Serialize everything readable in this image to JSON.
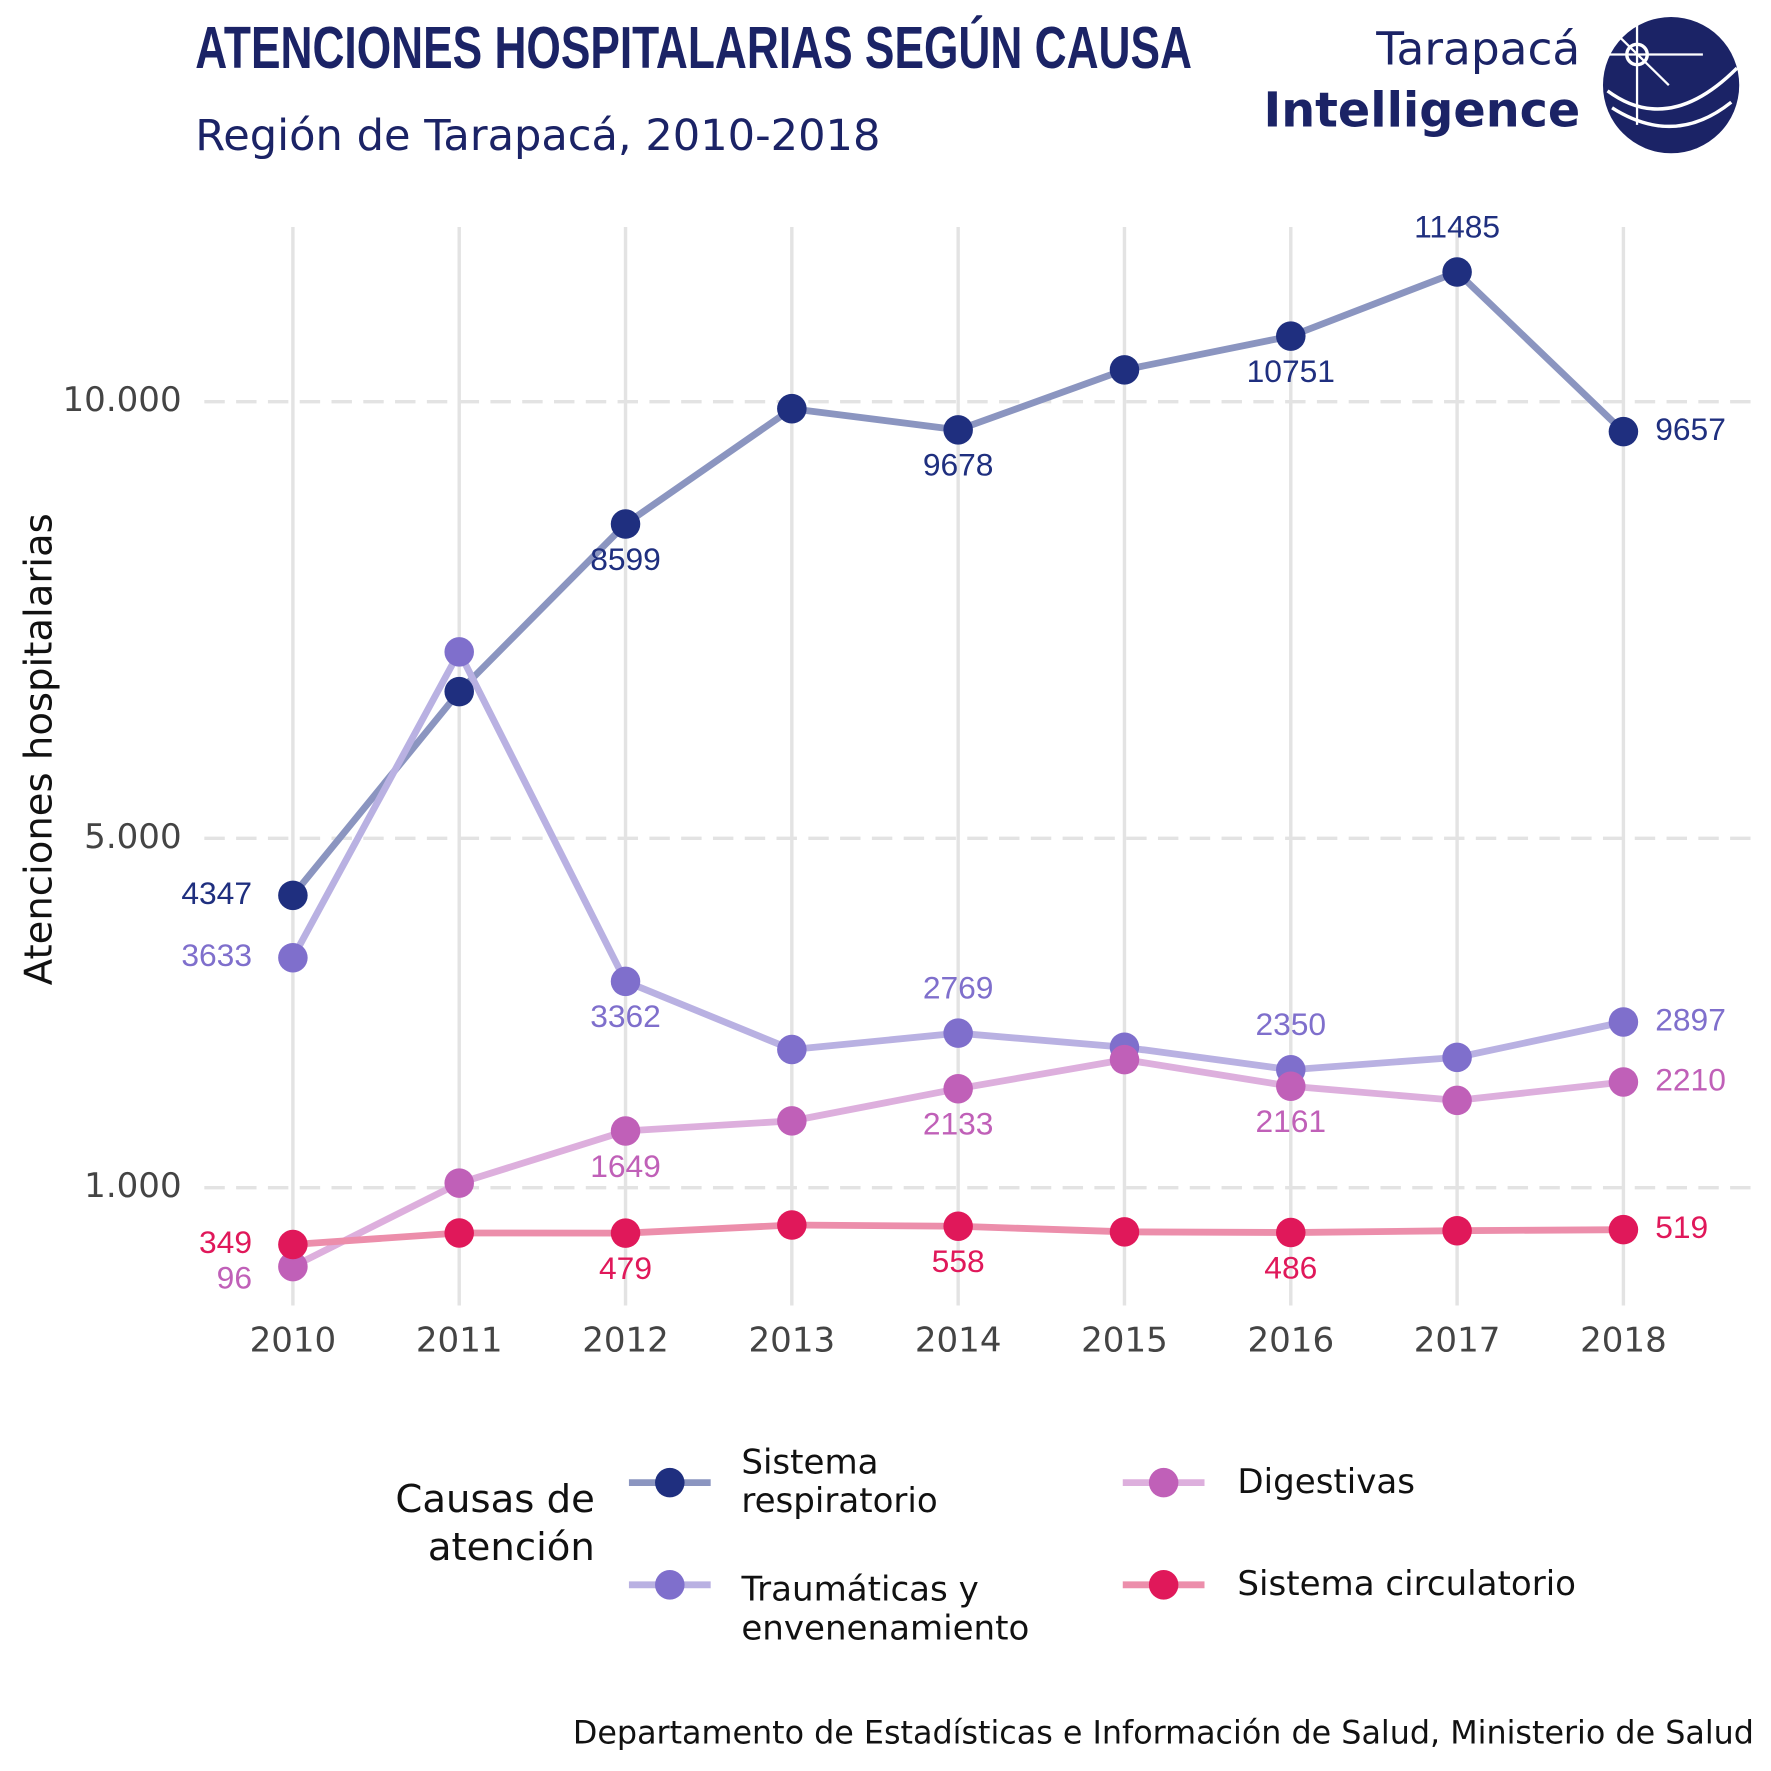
{
  "chart_data": {
    "type": "line",
    "title": "ATENCIONES HOSPITALARIAS SEGÚN CAUSA",
    "subtitle": "Región de Tarapacá, 2010-2018",
    "y_label": "Atenciones hospitalarias",
    "legend_title": "Causas de atención",
    "source": "Departamento de Estadísticas e Información de Salud, Ministerio de Salud",
    "categories": [
      "2010",
      "2011",
      "2012",
      "2013",
      "2014",
      "2015",
      "2016",
      "2017",
      "2018"
    ],
    "ylim": [
      -350,
      12000
    ],
    "yticks": [
      {
        "value": 1000,
        "label": "1.000"
      },
      {
        "value": 5000,
        "label": "5.000"
      },
      {
        "value": 10000,
        "label": "10.000"
      }
    ],
    "grid": true,
    "series": [
      {
        "name": "Sistema respiratorio",
        "color": "#1f2f7f",
        "line_color": "#8b95c0",
        "values": [
          4347,
          6680,
          8599,
          9920,
          9678,
          10365,
          10751,
          11485,
          9657
        ],
        "value_labels": [
          "4347",
          null,
          "8599",
          null,
          "9678",
          null,
          "10751",
          "11485",
          "9657"
        ]
      },
      {
        "name": "Traumáticas y envenenamiento",
        "color": "#7f6fcc",
        "line_color": "#b9b1e2",
        "values": [
          3633,
          7135,
          3362,
          2582,
          2769,
          2608,
          2350,
          2492,
          2897
        ],
        "value_labels": [
          "3633",
          null,
          "3362",
          null,
          "2769",
          null,
          "2350",
          null,
          "2897"
        ]
      },
      {
        "name": "Digestivas",
        "color": "#c060b8",
        "line_color": "#ddafdd",
        "values": [
          96,
          1052,
          1649,
          1765,
          2133,
          2466,
          2161,
          1999,
          2210
        ],
        "value_labels": [
          "96",
          null,
          "1649",
          null,
          "2133",
          null,
          "2161",
          null,
          "2210"
        ]
      },
      {
        "name": "Sistema circulatorio",
        "color": "#e0185a",
        "line_color": "#ec8eab",
        "values": [
          349,
          481,
          479,
          572,
          558,
          494,
          486,
          507,
          519
        ],
        "value_labels": [
          "349",
          null,
          "479",
          null,
          "558",
          null,
          "486",
          null,
          "519"
        ]
      }
    ]
  },
  "logo": {
    "line1": "Tarapacá",
    "line2": "Intelligence"
  }
}
